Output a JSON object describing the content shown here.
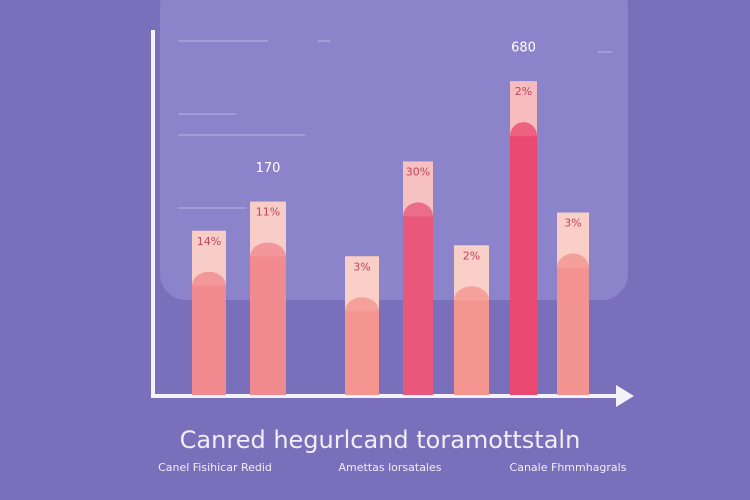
{
  "chart_data": {
    "type": "bar",
    "title": "Canred hegurlcand toramottstaln",
    "values": [
      45,
      53,
      38,
      64,
      41,
      86,
      50
    ],
    "bar_labels": [
      "14%",
      "11%",
      "3%",
      "30%",
      "2%",
      "2%",
      "3%"
    ],
    "colors": [
      "#f08a8e",
      "#f08a8e",
      "#f4958f",
      "#e9577a",
      "#f4958f",
      "#ea4a72",
      "#f3938f"
    ],
    "annotations": [
      {
        "text": "170",
        "bar": 1
      },
      {
        "text": "680",
        "bar": 5
      }
    ],
    "group_labels": [
      "Canel Fisihicar Redid",
      "Amettas lorsatales",
      "Canale Fhmmhagrals"
    ],
    "ylim": [
      0,
      100
    ]
  }
}
